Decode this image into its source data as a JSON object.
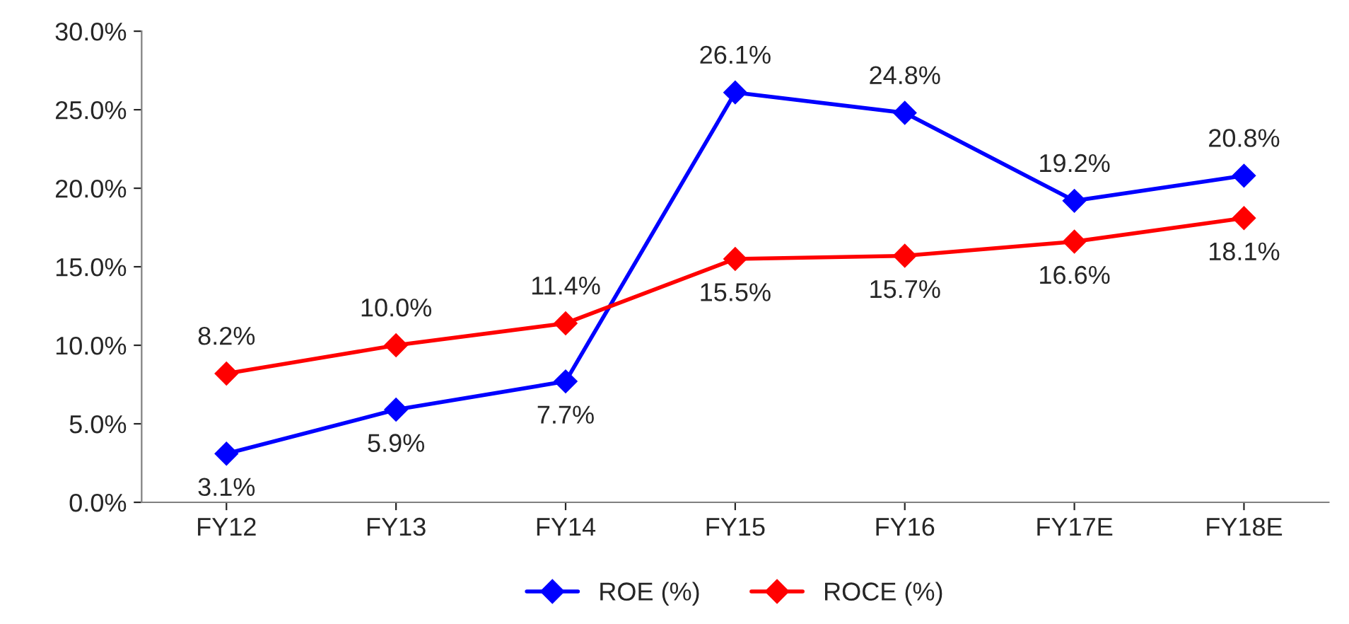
{
  "chart_data": {
    "type": "line",
    "categories": [
      "FY12",
      "FY13",
      "FY14",
      "FY15",
      "FY16",
      "FY17E",
      "FY18E"
    ],
    "series": [
      {
        "name": "ROE (%)",
        "color": "#0000ff",
        "values": [
          3.1,
          5.9,
          7.7,
          26.1,
          24.8,
          19.2,
          20.8
        ],
        "value_labels": [
          "3.1%",
          "5.9%",
          "7.7%",
          "26.1%",
          "24.8%",
          "19.2%",
          "20.8%"
        ]
      },
      {
        "name": "ROCE (%)",
        "color": "#ff0000",
        "values": [
          8.2,
          10.0,
          11.4,
          15.5,
          15.7,
          16.6,
          18.1
        ],
        "value_labels": [
          "8.2%",
          "10.0%",
          "11.4%",
          "15.5%",
          "15.7%",
          "16.6%",
          "18.1%"
        ]
      }
    ],
    "ylim": [
      0,
      30
    ],
    "yticks": [
      {
        "value": 0,
        "label": "0.0%"
      },
      {
        "value": 5,
        "label": "5.0%"
      },
      {
        "value": 10,
        "label": "10.0%"
      },
      {
        "value": 15,
        "label": "15.0%"
      },
      {
        "value": 20,
        "label": "20.0%"
      },
      {
        "value": 25,
        "label": "25.0%"
      },
      {
        "value": 30,
        "label": "30.0%"
      }
    ],
    "legend": "bottom",
    "grid": false,
    "marker": "diamond",
    "line_style": "solid"
  }
}
